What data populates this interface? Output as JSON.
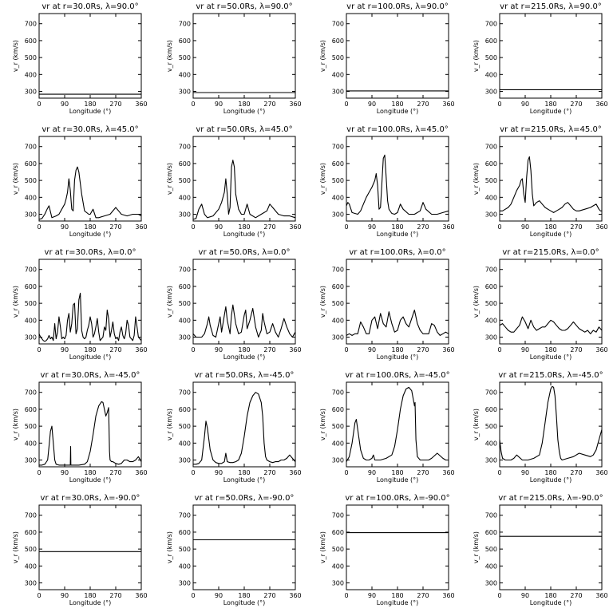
{
  "figure": {
    "xlabel": "Longitude (°)",
    "ylabel": "v_r (km/s)",
    "xticks": [
      0,
      90,
      180,
      270,
      360
    ],
    "yticks": [
      300,
      400,
      500,
      600,
      700
    ],
    "xlim": [
      0,
      360
    ],
    "ylim": [
      260,
      760
    ],
    "line_color": "#000000",
    "background": "#ffffff"
  },
  "chart_data": [
    {
      "type": "line",
      "title": "vr at r=30.0Rs, λ=90.0°",
      "x": [
        0,
        360
      ],
      "y": [
        283,
        283
      ],
      "xlim": [
        0,
        360
      ],
      "ylim": [
        260,
        760
      ],
      "xlabel": "Longitude (°)",
      "ylabel": "vr (km/s)"
    },
    {
      "type": "line",
      "title": "vr at r=50.0Rs, λ=90.0°",
      "x": [
        0,
        360
      ],
      "y": [
        293,
        293
      ],
      "xlim": [
        0,
        360
      ],
      "ylim": [
        260,
        760
      ],
      "xlabel": "Longitude (°)",
      "ylabel": "vr (km/s)"
    },
    {
      "type": "line",
      "title": "vr at r=100.0Rs, λ=90.0°",
      "x": [
        0,
        360
      ],
      "y": [
        303,
        303
      ],
      "xlim": [
        0,
        360
      ],
      "ylim": [
        260,
        760
      ],
      "xlabel": "Longitude (°)",
      "ylabel": "vr (km/s)"
    },
    {
      "type": "line",
      "title": "vr at r=215.0Rs, λ=90.0°",
      "x": [
        0,
        360
      ],
      "y": [
        310,
        310
      ],
      "xlim": [
        0,
        360
      ],
      "ylim": [
        260,
        760
      ],
      "xlabel": "Longitude (°)",
      "ylabel": "vr (km/s)"
    },
    {
      "type": "line",
      "title": "vr at r=30.0Rs, λ=45.0°",
      "x": [
        0,
        10,
        20,
        28,
        35,
        45,
        60,
        70,
        80,
        90,
        95,
        100,
        105,
        110,
        115,
        120,
        125,
        130,
        135,
        140,
        150,
        160,
        175,
        180,
        190,
        200,
        210,
        230,
        250,
        270,
        280,
        290,
        310,
        330,
        350,
        360
      ],
      "y": [
        270,
        275,
        300,
        330,
        350,
        280,
        290,
        300,
        330,
        360,
        390,
        430,
        510,
        440,
        330,
        320,
        500,
        560,
        580,
        550,
        420,
        320,
        300,
        300,
        330,
        280,
        280,
        290,
        300,
        340,
        320,
        300,
        290,
        300,
        300,
        290
      ],
      "xlim": [
        0,
        360
      ],
      "ylim": [
        260,
        760
      ],
      "xlabel": "Longitude (°)",
      "ylabel": "vr (km/s)"
    },
    {
      "type": "line",
      "title": "vr at r=50.0Rs, λ=45.0°",
      "x": [
        0,
        10,
        20,
        30,
        40,
        50,
        70,
        90,
        100,
        110,
        115,
        120,
        125,
        130,
        135,
        140,
        145,
        150,
        160,
        170,
        180,
        190,
        200,
        220,
        240,
        260,
        270,
        280,
        300,
        320,
        340,
        360
      ],
      "y": [
        270,
        275,
        330,
        360,
        300,
        280,
        290,
        330,
        370,
        430,
        510,
        420,
        300,
        340,
        580,
        620,
        580,
        420,
        330,
        300,
        300,
        360,
        300,
        280,
        300,
        320,
        360,
        340,
        300,
        290,
        290,
        280
      ],
      "xlim": [
        0,
        360
      ],
      "ylim": [
        260,
        760
      ],
      "xlabel": "Longitude (°)",
      "ylabel": "vr (km/s)"
    },
    {
      "type": "line",
      "title": "vr at r=100.0Rs, λ=45.0°",
      "x": [
        0,
        5,
        10,
        20,
        30,
        40,
        50,
        60,
        70,
        80,
        90,
        100,
        105,
        110,
        115,
        120,
        125,
        130,
        135,
        140,
        145,
        150,
        160,
        170,
        180,
        190,
        200,
        220,
        240,
        260,
        270,
        280,
        300,
        320,
        340,
        360
      ],
      "y": [
        350,
        370,
        360,
        310,
        305,
        300,
        320,
        360,
        400,
        430,
        460,
        500,
        540,
        470,
        330,
        340,
        480,
        630,
        650,
        520,
        380,
        330,
        305,
        300,
        310,
        360,
        330,
        300,
        300,
        320,
        370,
        330,
        300,
        300,
        310,
        320
      ],
      "xlim": [
        0,
        360
      ],
      "ylim": [
        260,
        760
      ],
      "xlabel": "Longitude (°)",
      "ylabel": "vr (km/s)"
    },
    {
      "type": "line",
      "title": "vr at r=215.0Rs, λ=45.0°",
      "x": [
        0,
        10,
        20,
        30,
        40,
        50,
        60,
        70,
        75,
        80,
        85,
        90,
        95,
        100,
        105,
        110,
        115,
        120,
        130,
        140,
        150,
        160,
        170,
        180,
        190,
        200,
        210,
        220,
        230,
        240,
        250,
        260,
        270,
        280,
        300,
        320,
        330,
        340,
        350,
        355,
        360
      ],
      "y": [
        320,
        320,
        330,
        340,
        360,
        400,
        440,
        470,
        500,
        510,
        420,
        370,
        520,
        620,
        640,
        560,
        420,
        350,
        370,
        380,
        360,
        340,
        330,
        320,
        310,
        320,
        330,
        340,
        360,
        370,
        350,
        330,
        320,
        320,
        330,
        340,
        350,
        360,
        330,
        320,
        320
      ],
      "xlim": [
        0,
        360
      ],
      "ylim": [
        260,
        760
      ],
      "xlabel": "Longitude (°)",
      "ylabel": "vr (km/s)"
    },
    {
      "type": "line",
      "title": "vr at r=30.0Rs, λ=0.0°",
      "x": [
        0,
        5,
        10,
        15,
        20,
        25,
        30,
        35,
        40,
        45,
        50,
        55,
        60,
        65,
        70,
        75,
        80,
        85,
        90,
        95,
        100,
        105,
        110,
        115,
        120,
        125,
        130,
        135,
        140,
        145,
        150,
        155,
        160,
        165,
        170,
        175,
        180,
        185,
        190,
        195,
        200,
        205,
        210,
        215,
        220,
        225,
        230,
        235,
        240,
        245,
        250,
        255,
        260,
        265,
        270,
        275,
        280,
        285,
        290,
        295,
        300,
        305,
        310,
        315,
        320,
        325,
        330,
        335,
        340,
        345,
        350,
        355,
        360
      ],
      "y": [
        320,
        300,
        290,
        280,
        275,
        280,
        290,
        310,
        290,
        300,
        280,
        380,
        290,
        330,
        420,
        360,
        290,
        300,
        290,
        310,
        400,
        440,
        330,
        380,
        490,
        500,
        320,
        350,
        520,
        560,
        340,
        300,
        290,
        300,
        340,
        370,
        420,
        380,
        300,
        320,
        360,
        410,
        330,
        280,
        290,
        300,
        360,
        340,
        460,
        410,
        300,
        340,
        390,
        320,
        290,
        300,
        280,
        330,
        360,
        310,
        290,
        320,
        400,
        370,
        300,
        290,
        280,
        310,
        420,
        360,
        300,
        290,
        280
      ],
      "xlim": [
        0,
        360
      ],
      "ylim": [
        260,
        760
      ],
      "xlabel": "Longitude (°)",
      "ylabel": "vr (km/s)"
    },
    {
      "type": "line",
      "title": "vr at r=50.0Rs, λ=0.0°",
      "x": [
        0,
        10,
        20,
        30,
        40,
        50,
        55,
        60,
        70,
        80,
        90,
        95,
        100,
        110,
        115,
        120,
        130,
        135,
        140,
        150,
        160,
        170,
        180,
        185,
        190,
        200,
        210,
        220,
        230,
        240,
        245,
        250,
        260,
        270,
        280,
        290,
        300,
        310,
        320,
        330,
        340,
        350,
        360
      ],
      "y": [
        320,
        300,
        300,
        300,
        320,
        380,
        420,
        370,
        310,
        300,
        380,
        420,
        330,
        430,
        480,
        400,
        320,
        430,
        490,
        380,
        320,
        330,
        430,
        460,
        350,
        400,
        470,
        360,
        300,
        340,
        440,
        390,
        320,
        330,
        380,
        330,
        300,
        350,
        410,
        360,
        320,
        300,
        330
      ],
      "xlim": [
        0,
        360
      ],
      "ylim": [
        260,
        760
      ],
      "xlabel": "Longitude (°)",
      "ylabel": "vr (km/s)"
    },
    {
      "type": "line",
      "title": "vr at r=100.0Rs, λ=0.0°",
      "x": [
        0,
        10,
        20,
        30,
        40,
        50,
        60,
        70,
        80,
        90,
        100,
        110,
        120,
        130,
        140,
        150,
        160,
        170,
        180,
        190,
        200,
        210,
        220,
        230,
        240,
        250,
        260,
        270,
        280,
        290,
        300,
        310,
        320,
        330,
        340,
        350,
        360
      ],
      "y": [
        310,
        320,
        310,
        320,
        320,
        390,
        360,
        320,
        320,
        400,
        420,
        350,
        440,
        380,
        360,
        450,
        380,
        330,
        340,
        400,
        420,
        380,
        360,
        410,
        460,
        380,
        340,
        320,
        320,
        320,
        380,
        370,
        330,
        310,
        320,
        330,
        320
      ],
      "xlim": [
        0,
        360
      ],
      "ylim": [
        260,
        760
      ],
      "xlabel": "Longitude (°)",
      "ylabel": "vr (km/s)"
    },
    {
      "type": "line",
      "title": "vr at r=215.0Rs, λ=0.0°",
      "x": [
        0,
        10,
        20,
        30,
        40,
        50,
        60,
        70,
        80,
        90,
        100,
        110,
        120,
        130,
        140,
        150,
        160,
        170,
        180,
        190,
        200,
        210,
        220,
        230,
        240,
        250,
        260,
        270,
        280,
        290,
        300,
        310,
        320,
        330,
        340,
        350,
        360
      ],
      "y": [
        370,
        380,
        360,
        340,
        330,
        330,
        350,
        370,
        420,
        390,
        350,
        400,
        360,
        340,
        350,
        360,
        360,
        380,
        400,
        390,
        370,
        350,
        340,
        340,
        350,
        370,
        390,
        370,
        350,
        340,
        330,
        340,
        320,
        340,
        330,
        360,
        340
      ],
      "xlim": [
        0,
        360
      ],
      "ylim": [
        260,
        760
      ],
      "xlabel": "Longitude (°)",
      "ylabel": "vr (km/s)"
    },
    {
      "type": "line",
      "title": "vr at r=30.0Rs, λ=-45.0°",
      "x": [
        0,
        10,
        20,
        30,
        35,
        40,
        45,
        50,
        55,
        60,
        70,
        80,
        90,
        100,
        110,
        111,
        112,
        113,
        120,
        140,
        160,
        170,
        180,
        190,
        200,
        210,
        220,
        225,
        230,
        235,
        240,
        245,
        248,
        250,
        255,
        260,
        270,
        280,
        290,
        300,
        310,
        320,
        330,
        340,
        350,
        360
      ],
      "y": [
        270,
        270,
        275,
        300,
        380,
        470,
        500,
        400,
        300,
        275,
        270,
        270,
        270,
        270,
        270,
        380,
        270,
        270,
        270,
        270,
        275,
        290,
        350,
        450,
        560,
        620,
        645,
        640,
        600,
        560,
        580,
        610,
        350,
        300,
        290,
        290,
        280,
        275,
        280,
        300,
        300,
        290,
        290,
        300,
        320,
        290
      ],
      "xlim": [
        0,
        360
      ],
      "ylim": [
        260,
        760
      ],
      "xlabel": "Longitude (°)",
      "ylabel": "vr (km/s)"
    },
    {
      "type": "line",
      "title": "vr at r=50.0Rs, λ=-45.0°",
      "x": [
        0,
        10,
        20,
        30,
        40,
        45,
        50,
        60,
        70,
        80,
        90,
        100,
        110,
        115,
        120,
        130,
        140,
        150,
        160,
        170,
        180,
        190,
        200,
        210,
        220,
        230,
        240,
        245,
        250,
        255,
        260,
        270,
        280,
        290,
        300,
        310,
        320,
        330,
        340,
        350,
        360
      ],
      "y": [
        275,
        275,
        280,
        300,
        440,
        530,
        490,
        360,
        300,
        285,
        280,
        280,
        290,
        340,
        290,
        285,
        285,
        290,
        300,
        340,
        440,
        560,
        640,
        680,
        700,
        690,
        640,
        560,
        400,
        320,
        300,
        290,
        285,
        290,
        290,
        300,
        300,
        310,
        330,
        310,
        290
      ],
      "xlim": [
        0,
        360
      ],
      "ylim": [
        260,
        760
      ],
      "xlabel": "Longitude (°)",
      "ylabel": "vr (km/s)"
    },
    {
      "type": "line",
      "title": "vr at r=100.0Rs, λ=-45.0°",
      "x": [
        0,
        10,
        20,
        30,
        35,
        40,
        50,
        60,
        70,
        80,
        90,
        95,
        100,
        110,
        120,
        140,
        160,
        170,
        180,
        190,
        200,
        210,
        220,
        230,
        240,
        242,
        245,
        250,
        260,
        270,
        280,
        290,
        300,
        320,
        340,
        350,
        360
      ],
      "y": [
        290,
        320,
        400,
        520,
        540,
        480,
        360,
        310,
        300,
        300,
        310,
        330,
        300,
        300,
        300,
        310,
        330,
        380,
        480,
        600,
        680,
        720,
        730,
        710,
        620,
        640,
        420,
        320,
        300,
        300,
        300,
        300,
        310,
        340,
        310,
        300,
        300
      ],
      "xlim": [
        0,
        360
      ],
      "ylim": [
        260,
        760
      ],
      "xlabel": "Longitude (°)",
      "ylabel": "vr (km/s)"
    },
    {
      "type": "line",
      "title": "vr at r=215.0Rs, λ=-45.0°",
      "x": [
        0,
        5,
        10,
        20,
        30,
        40,
        50,
        60,
        80,
        100,
        120,
        140,
        150,
        160,
        170,
        180,
        185,
        190,
        195,
        200,
        205,
        210,
        215,
        220,
        240,
        260,
        280,
        300,
        320,
        330,
        340,
        350,
        360
      ],
      "y": [
        420,
        350,
        310,
        300,
        300,
        300,
        310,
        330,
        300,
        300,
        310,
        330,
        400,
        520,
        640,
        720,
        735,
        730,
        680,
        560,
        420,
        350,
        310,
        300,
        310,
        320,
        340,
        330,
        320,
        330,
        360,
        420,
        480
      ],
      "xlim": [
        0,
        360
      ],
      "ylim": [
        260,
        760
      ],
      "xlabel": "Longitude (°)",
      "ylabel": "vr (km/s)"
    },
    {
      "type": "line",
      "title": "vr at r=30.0Rs, λ=-90.0°",
      "x": [
        0,
        360
      ],
      "y": [
        485,
        485
      ],
      "xlim": [
        0,
        360
      ],
      "ylim": [
        260,
        760
      ],
      "xlabel": "Longitude (°)",
      "ylabel": "vr (km/s)"
    },
    {
      "type": "line",
      "title": "vr at r=50.0Rs, λ=-90.0°",
      "x": [
        0,
        360
      ],
      "y": [
        555,
        555
      ],
      "xlim": [
        0,
        360
      ],
      "ylim": [
        260,
        760
      ],
      "xlabel": "Longitude (°)",
      "ylabel": "vr (km/s)"
    },
    {
      "type": "line",
      "title": "vr at r=100.0Rs, λ=-90.0°",
      "x": [
        0,
        360
      ],
      "y": [
        597,
        597
      ],
      "xlim": [
        0,
        360
      ],
      "ylim": [
        260,
        760
      ],
      "xlabel": "Longitude (°)",
      "ylabel": "vr (km/s)"
    },
    {
      "type": "line",
      "title": "vr at r=215.0Rs, λ=-90.0°",
      "x": [
        0,
        360
      ],
      "y": [
        575,
        575
      ],
      "xlim": [
        0,
        360
      ],
      "ylim": [
        260,
        760
      ],
      "xlabel": "Longitude (°)",
      "ylabel": "vr (km/s)"
    }
  ]
}
